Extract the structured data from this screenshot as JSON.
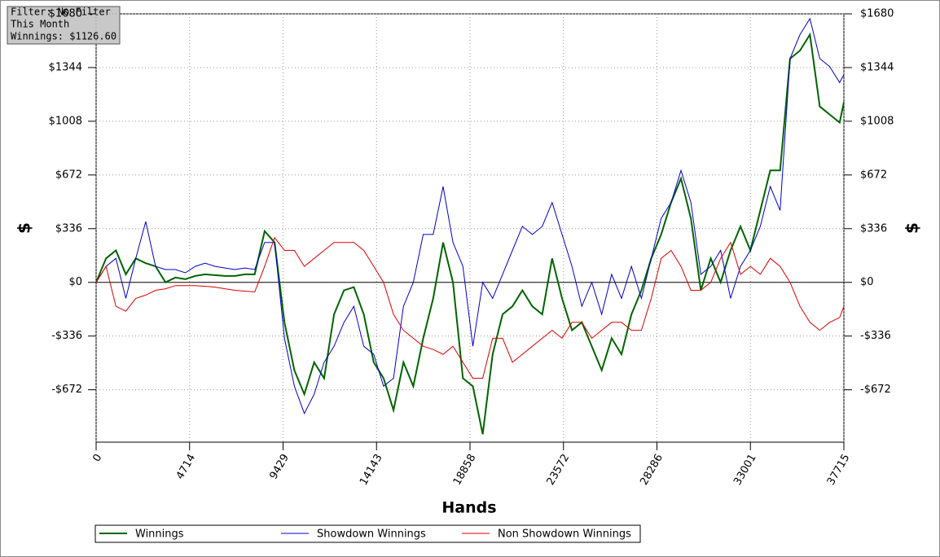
{
  "chart_data": {
    "type": "line",
    "annotations": [
      "Filter: No Filter",
      "This Month",
      "Winnings: $1126.60"
    ],
    "ylabel": "$",
    "y2label": "$",
    "xlabel": "Hands",
    "xlim": [
      0,
      37715
    ],
    "xticks": [
      0,
      4714,
      9429,
      14143,
      18858,
      23572,
      28286,
      33001,
      37715
    ],
    "ylim": [
      -1000,
      1680
    ],
    "yticks": [
      {
        "value": -672,
        "label": "-$672"
      },
      {
        "value": -336,
        "label": "-$336"
      },
      {
        "value": 0,
        "label": "$0"
      },
      {
        "value": 336,
        "label": "$336"
      },
      {
        "value": 672,
        "label": "$672"
      },
      {
        "value": 1008,
        "label": "$1008"
      },
      {
        "value": 1344,
        "label": "$1344"
      },
      {
        "value": 1680,
        "label": "$1680"
      }
    ],
    "grid": true,
    "x": [
      0,
      500,
      1000,
      1500,
      2000,
      2500,
      3000,
      3500,
      4000,
      4500,
      5000,
      5500,
      6000,
      6500,
      7000,
      7500,
      8000,
      8500,
      9000,
      9500,
      10000,
      10500,
      11000,
      11500,
      12000,
      12500,
      13000,
      13500,
      14000,
      14500,
      15000,
      15500,
      16000,
      16500,
      17000,
      17500,
      18000,
      18500,
      19000,
      19500,
      20000,
      20500,
      21000,
      21500,
      22000,
      22500,
      23000,
      23500,
      24000,
      24500,
      25000,
      25500,
      26000,
      26500,
      27000,
      27500,
      28000,
      28500,
      29000,
      29500,
      30000,
      30500,
      31000,
      31500,
      32000,
      32500,
      33000,
      33500,
      34000,
      34500,
      35000,
      35500,
      36000,
      36500,
      37000,
      37500,
      37715
    ],
    "series": [
      {
        "name": "Winnings",
        "color": "#006400",
        "width": 2,
        "values": [
          0,
          150,
          200,
          50,
          150,
          120,
          100,
          0,
          30,
          20,
          40,
          50,
          45,
          40,
          40,
          50,
          50,
          320,
          250,
          -250,
          -550,
          -700,
          -500,
          -600,
          -200,
          -50,
          -30,
          -200,
          -500,
          -600,
          -800,
          -500,
          -650,
          -350,
          -100,
          250,
          0,
          -600,
          -650,
          -950,
          -450,
          -200,
          -150,
          -50,
          -150,
          -200,
          150,
          -100,
          -300,
          -250,
          -400,
          -550,
          -350,
          -450,
          -200,
          -50,
          150,
          300,
          500,
          650,
          400,
          -50,
          150,
          0,
          200,
          350,
          200,
          450,
          700,
          700,
          1400,
          1450,
          1550,
          1100,
          1050,
          1000,
          1127
        ]
      },
      {
        "name": "Showdown Winnings",
        "color": "#0000cc",
        "width": 1,
        "values": [
          0,
          100,
          150,
          -100,
          150,
          380,
          100,
          80,
          80,
          60,
          100,
          120,
          100,
          90,
          80,
          90,
          80,
          250,
          250,
          -350,
          -650,
          -820,
          -700,
          -500,
          -400,
          -250,
          -150,
          -400,
          -450,
          -650,
          -600,
          -150,
          0,
          300,
          300,
          600,
          250,
          100,
          -400,
          0,
          -100,
          50,
          200,
          350,
          300,
          350,
          500,
          300,
          100,
          -150,
          0,
          -200,
          50,
          -100,
          100,
          -100,
          150,
          400,
          500,
          700,
          500,
          50,
          100,
          200,
          -100,
          100,
          200,
          350,
          600,
          450,
          1400,
          1550,
          1650,
          1400,
          1350,
          1250,
          1300
        ]
      },
      {
        "name": "Non Showdown Winnings",
        "color": "#dd0000",
        "width": 1,
        "values": [
          0,
          100,
          -150,
          -180,
          -100,
          -80,
          -50,
          -40,
          -20,
          -20,
          -20,
          -25,
          -30,
          -40,
          -50,
          -55,
          -60,
          100,
          280,
          200,
          200,
          100,
          150,
          200,
          250,
          250,
          250,
          200,
          100,
          0,
          -200,
          -300,
          -350,
          -400,
          -420,
          -450,
          -400,
          -500,
          -600,
          -600,
          -350,
          -350,
          -500,
          -450,
          -400,
          -350,
          -300,
          -350,
          -250,
          -250,
          -350,
          -300,
          -250,
          -250,
          -300,
          -300,
          -100,
          150,
          200,
          100,
          -50,
          -50,
          0,
          150,
          250,
          50,
          100,
          50,
          150,
          100,
          0,
          -150,
          -250,
          -300,
          -250,
          -220,
          -150
        ]
      }
    ]
  }
}
